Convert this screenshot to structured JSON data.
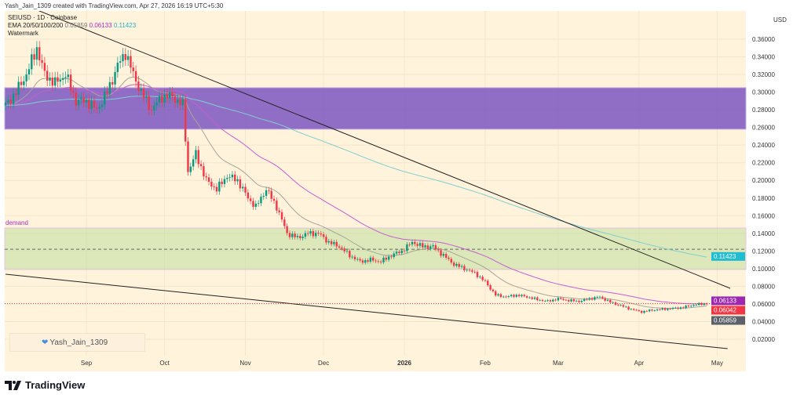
{
  "header": {
    "credit": "Yash_Jain_1309 created with TradingView.com, Apr 27, 2026 16:19 UTC+5:30"
  },
  "legend": {
    "symbol": "SEIUSD · 1D · Coinbase",
    "ema_label": "EMA 20/50/100/200",
    "ema20": "0.05859",
    "ema50": "0.06133",
    "ema200": "0.11423",
    "watermark": "Watermark"
  },
  "watermark_box": {
    "text": "Yash_Jain_1309",
    "icon": "heart-icon"
  },
  "brand": {
    "name": "TradingView",
    "icon": "tradingview-logo-icon"
  },
  "currency": "USD",
  "chart_data": {
    "type": "candlestick",
    "symbol": "SEIUSD",
    "interval": "1D",
    "exchange": "Coinbase",
    "y_ticks": [
      "0.36000",
      "0.34000",
      "0.32000",
      "0.30000",
      "0.28000",
      "0.26000",
      "0.24000",
      "0.22000",
      "0.20000",
      "0.18000",
      "0.16000",
      "0.14000",
      "0.12000",
      "0.10000",
      "0.08000",
      "0.06000",
      "0.04000",
      "0.02000"
    ],
    "ylim": [
      0.005,
      0.375
    ],
    "x_ticks": [
      {
        "date": "2025-09-01",
        "label": "Sep"
      },
      {
        "date": "2025-10-01",
        "label": "Oct"
      },
      {
        "date": "2025-11-01",
        "label": "Nov"
      },
      {
        "date": "2025-12-01",
        "label": "Dec"
      },
      {
        "date": "2026-01-01",
        "label": "2026"
      },
      {
        "date": "2026-02-01",
        "label": "Feb"
      },
      {
        "date": "2026-03-01",
        "label": "Mar"
      },
      {
        "date": "2026-04-01",
        "label": "Apr"
      },
      {
        "date": "2026-05-01",
        "label": "May"
      }
    ],
    "xlim": [
      "2025-07-31",
      "2026-05-12"
    ],
    "closes": [
      [
        "2025-08-01",
        0.285
      ],
      [
        "2025-08-05",
        0.3
      ],
      [
        "2025-08-09",
        0.32
      ],
      [
        "2025-08-13",
        0.35
      ],
      [
        "2025-08-16",
        0.32
      ],
      [
        "2025-08-20",
        0.31
      ],
      [
        "2025-08-24",
        0.32
      ],
      [
        "2025-08-28",
        0.29
      ],
      [
        "2025-09-01",
        0.29
      ],
      [
        "2025-09-05",
        0.28
      ],
      [
        "2025-09-09",
        0.3
      ],
      [
        "2025-09-13",
        0.33
      ],
      [
        "2025-09-16",
        0.345
      ],
      [
        "2025-09-19",
        0.32
      ],
      [
        "2025-09-22",
        0.3
      ],
      [
        "2025-09-26",
        0.28
      ],
      [
        "2025-09-30",
        0.295
      ],
      [
        "2025-10-04",
        0.295
      ],
      [
        "2025-10-08",
        0.285
      ],
      [
        "2025-10-10",
        0.21
      ],
      [
        "2025-10-13",
        0.23
      ],
      [
        "2025-10-17",
        0.2
      ],
      [
        "2025-10-21",
        0.19
      ],
      [
        "2025-10-25",
        0.205
      ],
      [
        "2025-10-29",
        0.2
      ],
      [
        "2025-11-02",
        0.18
      ],
      [
        "2025-11-05",
        0.17
      ],
      [
        "2025-11-09",
        0.19
      ],
      [
        "2025-11-13",
        0.17
      ],
      [
        "2025-11-17",
        0.14
      ],
      [
        "2025-11-21",
        0.135
      ],
      [
        "2025-11-25",
        0.14
      ],
      [
        "2025-11-29",
        0.14
      ],
      [
        "2025-12-03",
        0.13
      ],
      [
        "2025-12-07",
        0.125
      ],
      [
        "2025-12-11",
        0.115
      ],
      [
        "2025-12-15",
        0.108
      ],
      [
        "2025-12-19",
        0.11
      ],
      [
        "2025-12-23",
        0.108
      ],
      [
        "2025-12-27",
        0.115
      ],
      [
        "2025-12-31",
        0.12
      ],
      [
        "2026-01-04",
        0.13
      ],
      [
        "2026-01-08",
        0.125
      ],
      [
        "2026-01-12",
        0.125
      ],
      [
        "2026-01-16",
        0.115
      ],
      [
        "2026-01-20",
        0.105
      ],
      [
        "2026-01-24",
        0.1
      ],
      [
        "2026-01-28",
        0.095
      ],
      [
        "2026-02-01",
        0.085
      ],
      [
        "2026-02-05",
        0.07
      ],
      [
        "2026-02-09",
        0.068
      ],
      [
        "2026-02-13",
        0.07
      ],
      [
        "2026-02-17",
        0.068
      ],
      [
        "2026-02-21",
        0.065
      ],
      [
        "2026-02-25",
        0.063
      ],
      [
        "2026-03-01",
        0.066
      ],
      [
        "2026-03-05",
        0.064
      ],
      [
        "2026-03-09",
        0.063
      ],
      [
        "2026-03-13",
        0.066
      ],
      [
        "2026-03-17",
        0.068
      ],
      [
        "2026-03-21",
        0.062
      ],
      [
        "2026-03-25",
        0.058
      ],
      [
        "2026-03-29",
        0.054
      ],
      [
        "2026-04-02",
        0.051
      ],
      [
        "2026-04-06",
        0.053
      ],
      [
        "2026-04-10",
        0.054
      ],
      [
        "2026-04-14",
        0.055
      ],
      [
        "2026-04-18",
        0.056
      ],
      [
        "2026-04-22",
        0.059
      ],
      [
        "2026-04-27",
        0.06042
      ]
    ],
    "indicators": [
      {
        "name": "EMA 20",
        "period": 20,
        "color": "#a9a39a",
        "last": "0.05859"
      },
      {
        "name": "EMA 50",
        "period": 50,
        "color": "#c35fd0",
        "last": "0.06133"
      },
      {
        "name": "EMA 200",
        "period": 200,
        "color": "#7fcfd0",
        "last": "0.11423"
      }
    ],
    "last_price": "0.06042",
    "price_labels": [
      {
        "value": "0.11423",
        "color": "#1fbcd2"
      },
      {
        "value": "0.06133",
        "color": "#9c27b0"
      },
      {
        "value": "0.06042",
        "color": "#f23645"
      },
      {
        "value": "0.05859",
        "color": "#5d606b"
      }
    ],
    "zones": [
      {
        "name": "",
        "from": 0.258,
        "to": 0.305,
        "color": "#7e57c2"
      },
      {
        "name": "demand",
        "from": 0.099,
        "to": 0.146,
        "color": "#c5e1a5",
        "midline": 0.122
      }
    ],
    "trendlines": [
      {
        "from": [
          "2025-08-11",
          0.3955
        ],
        "to": [
          "2026-05-06",
          0.0777
        ]
      },
      {
        "from": [
          "2025-08-01",
          0.0937
        ],
        "to": [
          "2026-05-05",
          0.0093
        ]
      }
    ],
    "colors": {
      "up": "#089981",
      "down": "#f23645",
      "background": "#fff3dc"
    }
  }
}
